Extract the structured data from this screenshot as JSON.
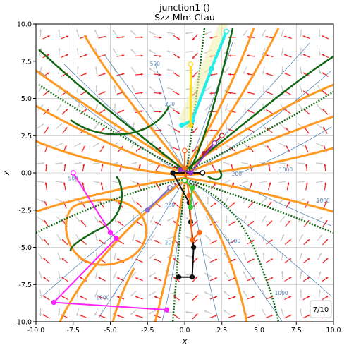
{
  "chart_data": {
    "type": "line",
    "title": "junction1 ()",
    "subtitle": "Szz-Mlm-Ctau",
    "xlabel": "x",
    "ylabel": "y",
    "xlim": [
      -10,
      10
    ],
    "ylim": [
      -10,
      10
    ],
    "x_ticks": [
      "-10.0",
      "-7.5",
      "-5.0",
      "-2.5",
      "0.0",
      "2.5",
      "5.0",
      "7.5",
      "10.0"
    ],
    "y_ticks": [
      "-10.0",
      "-7.5",
      "-5.0",
      "-2.5",
      "0.0",
      "2.5",
      "5.0",
      "7.5",
      "10.0"
    ],
    "x_tick_values": [
      -10,
      -7.5,
      -5,
      -2.5,
      0,
      2.5,
      5,
      7.5,
      10
    ],
    "y_tick_values": [
      -10,
      -7.5,
      -5,
      -2.5,
      0,
      2.5,
      5,
      7.5,
      10
    ],
    "grid": true,
    "page_indicator": "7/10",
    "contour_labels": [
      {
        "text": "500",
        "x": -7.5,
        "y": -0.5
      },
      {
        "text": "500",
        "x": -2.0,
        "y": 7.2
      },
      {
        "text": "200",
        "x": -1.0,
        "y": 4.5
      },
      {
        "text": "200",
        "x": 3.5,
        "y": -0.2
      },
      {
        "text": "200",
        "x": -1.0,
        "y": -2.3
      },
      {
        "text": "200",
        "x": -1.0,
        "y": -4.8
      },
      {
        "text": "1000",
        "x": 9.3,
        "y": -2.0
      },
      {
        "text": "1000",
        "x": -5.5,
        "y": -8.5
      },
      {
        "text": "1000",
        "x": 6.5,
        "y": -8.2
      },
      {
        "text": "1000",
        "x": 3.3,
        "y": -4.7
      },
      {
        "text": "1000",
        "x": 6.8,
        "y": 0.1
      }
    ],
    "colors": {
      "orange_curves": "#ff9922",
      "green_curves": "#116611",
      "contours": "#5b88b8",
      "arrows_red": "#ee2222",
      "arrows_gray": "#c8c8c8",
      "magenta": "#ff22ff",
      "cyan": "#22eeee",
      "yellow": "#ffdd22",
      "black": "#111111",
      "navy": "#111199",
      "purple": "#9933cc",
      "brown": "#aa2222",
      "orange_path": "#ff6611",
      "green_path": "#33cc33",
      "mediumpurple": "#8866cc"
    },
    "series": [
      {
        "color": "magenta",
        "points": [
          [
            -7.5,
            0.0
          ],
          [
            -5.0,
            -4.0
          ],
          [
            -4.6,
            -4.4
          ],
          [
            -8.8,
            -8.7
          ],
          [
            -1.2,
            -9.2
          ]
        ]
      },
      {
        "color": "black",
        "points": [
          [
            1.2,
            0.0
          ],
          [
            -0.8,
            0.0
          ],
          [
            0.3,
            -2.0
          ],
          [
            0.4,
            -3.3
          ],
          [
            0.6,
            -5.0
          ],
          [
            0.5,
            -7.0
          ],
          [
            -0.4,
            -7.0
          ]
        ]
      },
      {
        "color": "cyan",
        "points": [
          [
            2.8,
            9.5
          ],
          [
            1.8,
            7.0
          ],
          [
            0.5,
            3.5
          ],
          [
            -0.2,
            3.2
          ]
        ]
      },
      {
        "color": "yellow",
        "points": [
          [
            0.4,
            7.3
          ],
          [
            0.4,
            3.2
          ]
        ]
      },
      {
        "color": "orange_path",
        "points": [
          [
            0.0,
            1.5
          ],
          [
            0.0,
            0.3
          ],
          [
            0.3,
            -1.5
          ],
          [
            0.5,
            -4.5
          ],
          [
            1.0,
            -4.0
          ]
        ]
      },
      {
        "color": "brown",
        "points": [
          [
            2.5,
            2.5
          ],
          [
            1.3,
            1.3
          ]
        ]
      },
      {
        "color": "purple",
        "points": [
          [
            2.0,
            2.0
          ],
          [
            0.4,
            0.0
          ],
          [
            -0.3,
            0.2
          ]
        ]
      },
      {
        "color": "mediumpurple",
        "points": [
          [
            -1.0,
            -1.0
          ],
          [
            -2.5,
            -2.5
          ]
        ]
      },
      {
        "color": "green_path",
        "points": [
          [
            0.0,
            -0.5
          ],
          [
            0.5,
            -1.0
          ],
          [
            0.4,
            -2.3
          ]
        ]
      }
    ]
  }
}
